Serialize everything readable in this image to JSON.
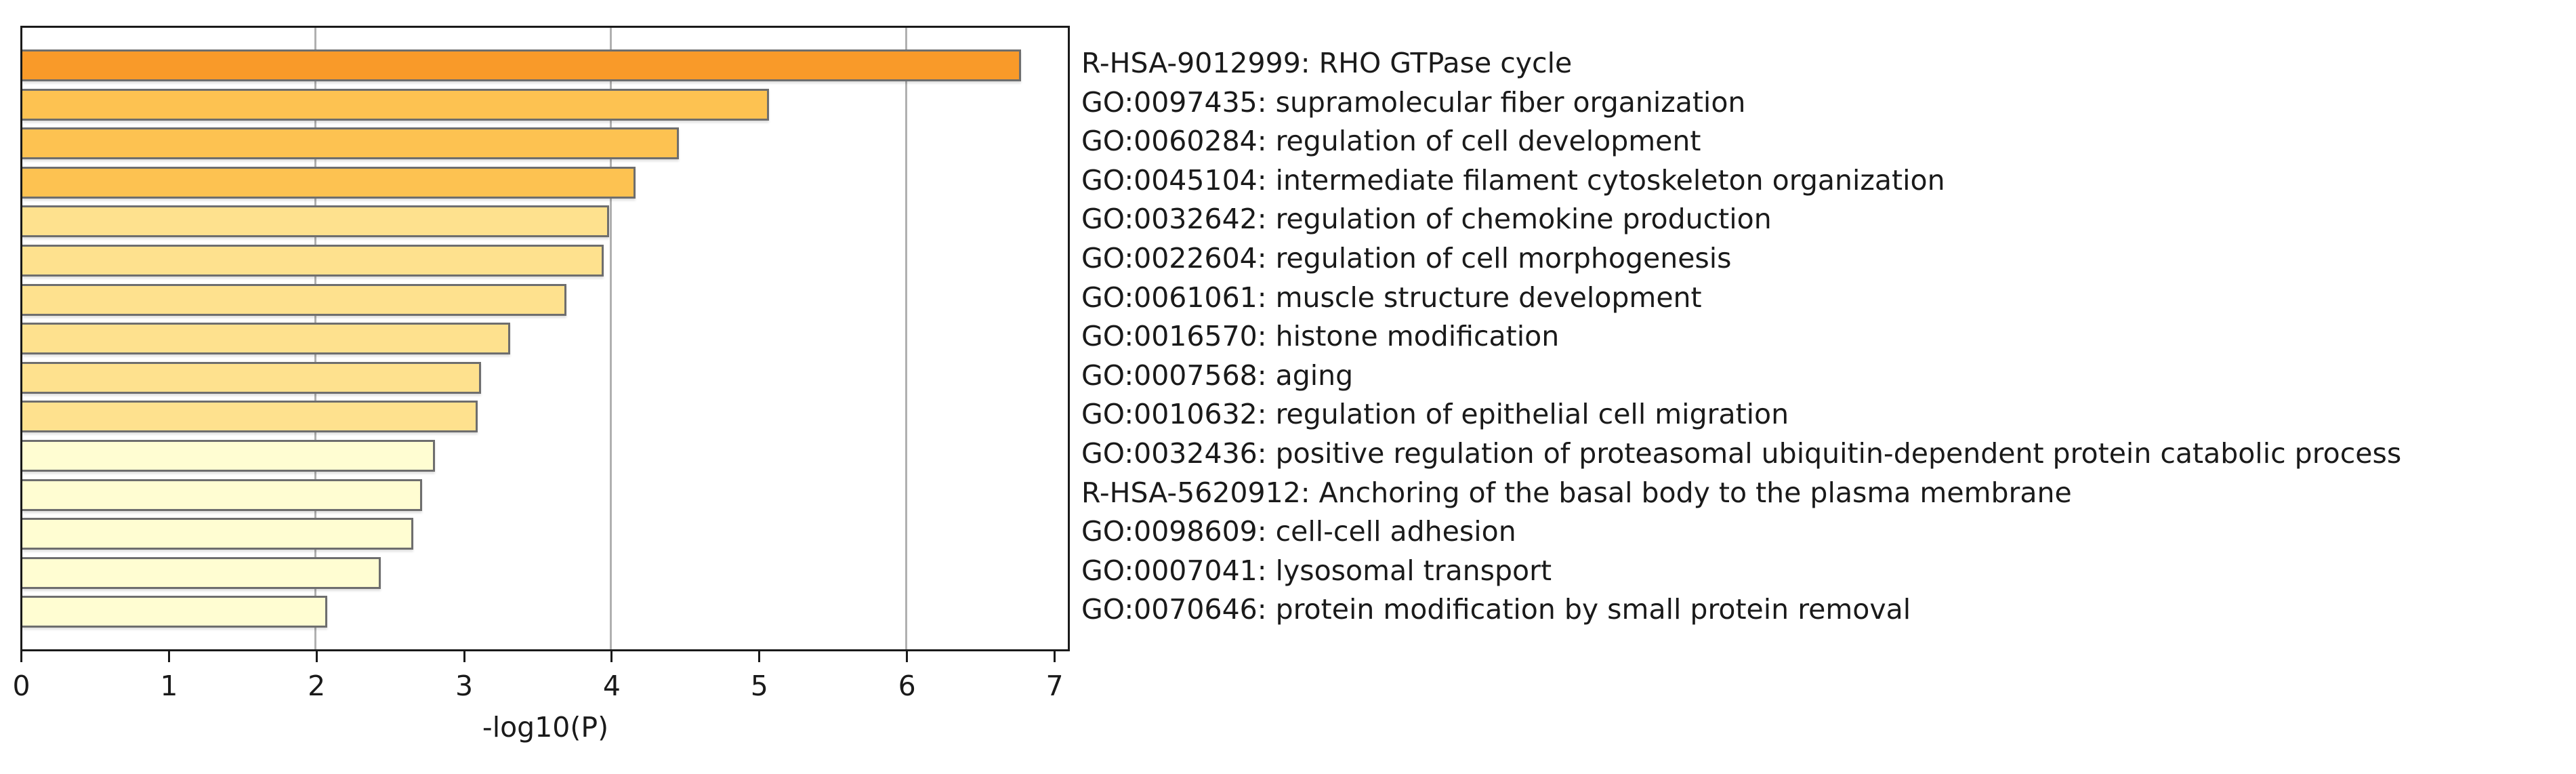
{
  "chart_data": {
    "type": "bar",
    "orientation": "horizontal",
    "title": "",
    "xlabel": "-log10(P)",
    "ylabel": "",
    "xlim": [
      0,
      7.11
    ],
    "xticks": [
      0,
      1,
      2,
      3,
      4,
      5,
      6,
      7
    ],
    "grid": {
      "axis": "x",
      "lines_at": [
        2,
        4,
        6
      ],
      "color": "#b0b0b0"
    },
    "legend": null,
    "categories": [
      "R-HSA-9012999: RHO GTPase cycle",
      "GO:0097435: supramolecular fiber organization",
      "GO:0060284: regulation of cell development",
      "GO:0045104: intermediate filament cytoskeleton organization",
      "GO:0032642: regulation of chemokine production",
      "GO:0022604: regulation of cell morphogenesis",
      "GO:0061061: muscle structure development",
      "GO:0016570: histone modification",
      "GO:0007568: aging",
      "GO:0010632: regulation of epithelial cell migration",
      "GO:0032436: positive regulation of proteasomal ubiquitin-dependent protein catabolic process",
      "R-HSA-5620912: Anchoring of the basal body to the plasma membrane",
      "GO:0098609: cell-cell adhesion",
      "GO:0007041: lysosomal transport",
      "GO:0070646: protein modification by small protein removal"
    ],
    "values": [
      6.78,
      5.07,
      4.46,
      4.17,
      3.99,
      3.95,
      3.7,
      3.32,
      3.12,
      3.1,
      2.81,
      2.72,
      2.66,
      2.44,
      2.08
    ],
    "bar_colors": [
      "#F99A29",
      "#FDC251",
      "#FDC251",
      "#FDC251",
      "#FEE18E",
      "#FEE18E",
      "#FEE18E",
      "#FEE18E",
      "#FEE18E",
      "#FEE18E",
      "#FFFDD2",
      "#FFFDD2",
      "#FFFDD2",
      "#FFFDD2",
      "#FFFDD2"
    ],
    "bar_edge_color": "#6e6e6e"
  },
  "axis": {
    "xlabel": "-log10(P)",
    "tick_labels": [
      "0",
      "1",
      "2",
      "3",
      "4",
      "5",
      "6",
      "7"
    ]
  }
}
